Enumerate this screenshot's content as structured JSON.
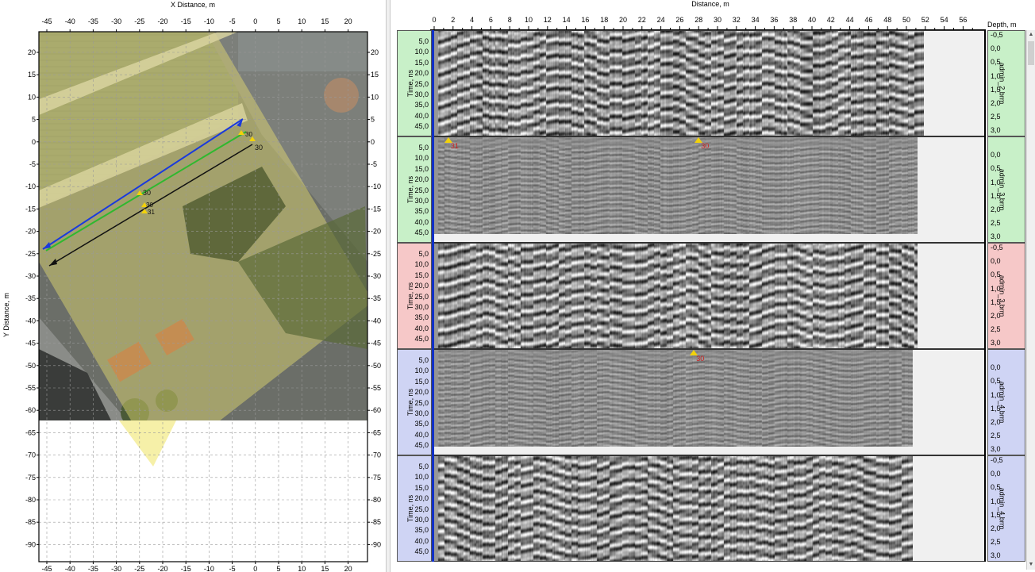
{
  "map": {
    "x_axis_title": "X Distance, m",
    "y_axis_title": "Y Distance, m",
    "x_ticks": [
      "-45",
      "-40",
      "-35",
      "-30",
      "-25",
      "-20",
      "-15",
      "-10",
      "-5",
      "0",
      "5",
      "10",
      "15",
      "20"
    ],
    "y_ticks": [
      "20",
      "15",
      "10",
      "5",
      "0",
      "-5",
      "-10",
      "-15",
      "-20",
      "-25",
      "-30",
      "-35",
      "-40",
      "-45",
      "-50",
      "-55",
      "-60",
      "-65",
      "-70",
      "-75",
      "-80",
      "-85",
      "-90"
    ],
    "point_labels": [
      "30",
      "30",
      "30",
      "30",
      "31"
    ],
    "colors": {
      "blue_track": "#1a3adc",
      "green_track": "#2fb82f",
      "black_track": "#111111",
      "overlay": "#e8e070"
    }
  },
  "radar": {
    "distance_title": "Distance, m",
    "depth_title": "Depth, m",
    "distance_ticks": [
      "0",
      "2",
      "4",
      "6",
      "8",
      "10",
      "12",
      "14",
      "16",
      "18",
      "20",
      "22",
      "24",
      "26",
      "28",
      "30",
      "32",
      "34",
      "36",
      "38",
      "40",
      "42",
      "44",
      "46",
      "48",
      "50",
      "52",
      "54",
      "56"
    ],
    "time_title": "Time, ns",
    "time_ticks": [
      "5,0",
      "10,0",
      "15,0",
      "20,0",
      "25,0",
      "30,0",
      "35,0",
      "40,0",
      "45,0"
    ],
    "depth_ticks": [
      "-0,5",
      "0,0",
      "0,5",
      "1,0",
      "1,5",
      "2,0",
      "2,5",
      "3,0"
    ],
    "profiles": [
      {
        "file": "admin_2.brm",
        "color": "#c8f0c8"
      },
      {
        "file": "admin_3.brm",
        "color": "#c8f0c8"
      },
      {
        "file": "admin_3.brm",
        "color": "#f6c8c8"
      },
      {
        "file": "admin_4.brm",
        "color": "#cfd4f4"
      },
      {
        "file": "admin_4.brm",
        "color": "#cfd4f4"
      }
    ],
    "markers": [
      {
        "profile": 1,
        "distance_m": 1.5,
        "label": "31"
      },
      {
        "profile": 1,
        "distance_m": 28,
        "label": "30"
      },
      {
        "profile": 3,
        "distance_m": 27.5,
        "label": "30"
      }
    ]
  }
}
